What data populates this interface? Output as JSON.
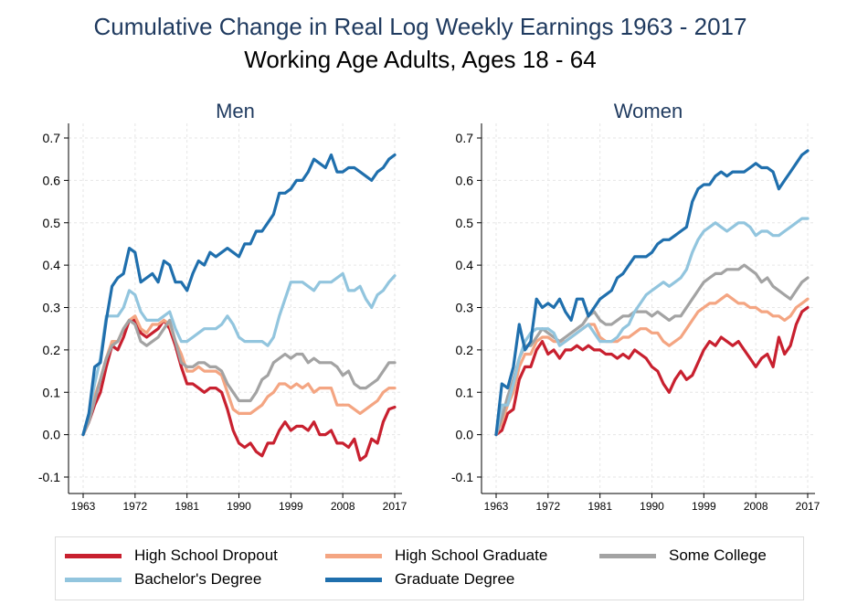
{
  "titles": {
    "main": "Cumulative Change in Real Log Weekly Earnings 1963 - 2017",
    "sub": "Working Age Adults, Ages 18 - 64"
  },
  "colors": {
    "high_school_dropout": "#c8202f",
    "high_school_graduate": "#f4a582",
    "some_college": "#a3a3a3",
    "bachelors_degree": "#92c5de",
    "graduate_degree": "#1f6fad"
  },
  "legend": [
    {
      "key": "high_school_dropout",
      "label": "High School Dropout"
    },
    {
      "key": "high_school_graduate",
      "label": "High School Graduate"
    },
    {
      "key": "some_college",
      "label": "Some College"
    },
    {
      "key": "bachelors_degree",
      "label": "Bachelor's Degree"
    },
    {
      "key": "graduate_degree",
      "label": "Graduate Degree"
    }
  ],
  "chart_data": [
    {
      "type": "line",
      "title": "Men",
      "xlim": [
        1963,
        2017
      ],
      "ylim": [
        -0.1,
        0.7
      ],
      "xticks": [
        1963,
        1972,
        1981,
        1990,
        1999,
        2008,
        2017
      ],
      "yticks": [
        "-0.1",
        "0.0",
        "0.1",
        "0.2",
        "0.3",
        "0.4",
        "0.5",
        "0.6",
        "0.7"
      ],
      "grid": true,
      "x": [
        1963,
        1964,
        1965,
        1966,
        1967,
        1968,
        1969,
        1970,
        1971,
        1972,
        1973,
        1974,
        1975,
        1976,
        1977,
        1978,
        1979,
        1980,
        1981,
        1982,
        1983,
        1984,
        1985,
        1986,
        1987,
        1988,
        1989,
        1990,
        1991,
        1992,
        1993,
        1994,
        1995,
        1996,
        1997,
        1998,
        1999,
        2000,
        2001,
        2002,
        2003,
        2004,
        2005,
        2006,
        2007,
        2008,
        2009,
        2010,
        2011,
        2012,
        2013,
        2014,
        2015,
        2016,
        2017
      ],
      "series": [
        {
          "name": "High School Dropout",
          "key": "high_school_dropout",
          "values": [
            0.0,
            0.03,
            0.07,
            0.1,
            0.16,
            0.21,
            0.2,
            0.23,
            0.27,
            0.27,
            0.24,
            0.23,
            0.24,
            0.25,
            0.27,
            0.25,
            0.21,
            0.16,
            0.12,
            0.12,
            0.11,
            0.1,
            0.11,
            0.11,
            0.1,
            0.06,
            0.01,
            -0.02,
            -0.03,
            -0.02,
            -0.04,
            -0.05,
            -0.02,
            -0.02,
            0.01,
            0.03,
            0.01,
            0.02,
            0.02,
            0.01,
            0.03,
            0.0,
            0.0,
            0.01,
            -0.02,
            -0.02,
            -0.03,
            -0.01,
            -0.06,
            -0.05,
            -0.01,
            -0.02,
            0.03,
            0.06,
            0.065
          ]
        },
        {
          "name": "High School Graduate",
          "key": "high_school_graduate",
          "values": [
            0.0,
            0.04,
            0.09,
            0.13,
            0.18,
            0.22,
            0.22,
            0.25,
            0.27,
            0.28,
            0.25,
            0.24,
            0.26,
            0.26,
            0.27,
            0.26,
            0.22,
            0.19,
            0.15,
            0.15,
            0.16,
            0.15,
            0.15,
            0.15,
            0.14,
            0.1,
            0.06,
            0.05,
            0.05,
            0.05,
            0.06,
            0.07,
            0.09,
            0.1,
            0.12,
            0.12,
            0.11,
            0.12,
            0.11,
            0.12,
            0.1,
            0.11,
            0.11,
            0.11,
            0.07,
            0.07,
            0.07,
            0.06,
            0.05,
            0.06,
            0.07,
            0.08,
            0.1,
            0.11,
            0.11
          ]
        },
        {
          "name": "Some College",
          "key": "some_college",
          "values": [
            0.0,
            0.03,
            0.08,
            0.13,
            0.18,
            0.21,
            0.22,
            0.25,
            0.27,
            0.26,
            0.22,
            0.21,
            0.22,
            0.23,
            0.25,
            0.27,
            0.22,
            0.17,
            0.16,
            0.16,
            0.17,
            0.17,
            0.16,
            0.16,
            0.15,
            0.12,
            0.1,
            0.08,
            0.08,
            0.08,
            0.1,
            0.13,
            0.14,
            0.17,
            0.18,
            0.19,
            0.18,
            0.19,
            0.19,
            0.17,
            0.18,
            0.17,
            0.17,
            0.17,
            0.16,
            0.14,
            0.15,
            0.12,
            0.11,
            0.11,
            0.12,
            0.13,
            0.15,
            0.17,
            0.17
          ]
        },
        {
          "name": "Bachelor's Degree",
          "key": "bachelors_degree",
          "values": [
            0.0,
            0.05,
            0.12,
            0.18,
            0.28,
            0.28,
            0.28,
            0.3,
            0.34,
            0.33,
            0.29,
            0.27,
            0.27,
            0.27,
            0.28,
            0.29,
            0.25,
            0.22,
            0.22,
            0.23,
            0.24,
            0.25,
            0.25,
            0.25,
            0.26,
            0.28,
            0.26,
            0.23,
            0.22,
            0.22,
            0.22,
            0.22,
            0.21,
            0.23,
            0.28,
            0.32,
            0.36,
            0.36,
            0.36,
            0.35,
            0.34,
            0.36,
            0.36,
            0.36,
            0.37,
            0.38,
            0.34,
            0.34,
            0.35,
            0.32,
            0.3,
            0.33,
            0.34,
            0.36,
            0.375
          ]
        },
        {
          "name": "Graduate Degree",
          "key": "graduate_degree",
          "values": [
            0.0,
            0.05,
            0.16,
            0.17,
            0.27,
            0.35,
            0.37,
            0.38,
            0.44,
            0.43,
            0.36,
            0.37,
            0.38,
            0.36,
            0.41,
            0.4,
            0.36,
            0.36,
            0.34,
            0.38,
            0.41,
            0.4,
            0.43,
            0.42,
            0.43,
            0.44,
            0.43,
            0.42,
            0.45,
            0.45,
            0.48,
            0.48,
            0.5,
            0.52,
            0.57,
            0.57,
            0.58,
            0.6,
            0.6,
            0.62,
            0.65,
            0.64,
            0.63,
            0.66,
            0.62,
            0.62,
            0.63,
            0.63,
            0.62,
            0.61,
            0.6,
            0.62,
            0.63,
            0.65,
            0.66
          ]
        }
      ]
    },
    {
      "type": "line",
      "title": "Women",
      "xlim": [
        1963,
        2017
      ],
      "ylim": [
        -0.1,
        0.7
      ],
      "xticks": [
        1963,
        1972,
        1981,
        1990,
        1999,
        2008,
        2017
      ],
      "yticks": [
        "-0.1",
        "0.0",
        "0.1",
        "0.2",
        "0.3",
        "0.4",
        "0.5",
        "0.6",
        "0.7"
      ],
      "grid": true,
      "x": [
        1963,
        1964,
        1965,
        1966,
        1967,
        1968,
        1969,
        1970,
        1971,
        1972,
        1973,
        1974,
        1975,
        1976,
        1977,
        1978,
        1979,
        1980,
        1981,
        1982,
        1983,
        1984,
        1985,
        1986,
        1987,
        1988,
        1989,
        1990,
        1991,
        1992,
        1993,
        1994,
        1995,
        1996,
        1997,
        1998,
        1999,
        2000,
        2001,
        2002,
        2003,
        2004,
        2005,
        2006,
        2007,
        2008,
        2009,
        2010,
        2011,
        2012,
        2013,
        2014,
        2015,
        2016,
        2017
      ],
      "series": [
        {
          "name": "High School Dropout",
          "key": "high_school_dropout",
          "values": [
            0.0,
            0.01,
            0.05,
            0.06,
            0.13,
            0.16,
            0.16,
            0.2,
            0.22,
            0.19,
            0.2,
            0.18,
            0.2,
            0.2,
            0.21,
            0.2,
            0.21,
            0.2,
            0.2,
            0.19,
            0.19,
            0.18,
            0.19,
            0.18,
            0.2,
            0.19,
            0.18,
            0.16,
            0.15,
            0.12,
            0.1,
            0.13,
            0.15,
            0.13,
            0.14,
            0.17,
            0.2,
            0.22,
            0.21,
            0.23,
            0.22,
            0.21,
            0.22,
            0.2,
            0.18,
            0.16,
            0.18,
            0.19,
            0.16,
            0.23,
            0.19,
            0.21,
            0.26,
            0.29,
            0.3
          ]
        },
        {
          "name": "High School Graduate",
          "key": "high_school_graduate",
          "values": [
            0.0,
            0.03,
            0.07,
            0.1,
            0.16,
            0.19,
            0.19,
            0.22,
            0.23,
            0.23,
            0.22,
            0.22,
            0.22,
            0.23,
            0.24,
            0.25,
            0.26,
            0.26,
            0.23,
            0.22,
            0.22,
            0.22,
            0.23,
            0.23,
            0.24,
            0.25,
            0.25,
            0.24,
            0.24,
            0.22,
            0.21,
            0.22,
            0.23,
            0.25,
            0.27,
            0.29,
            0.3,
            0.31,
            0.31,
            0.32,
            0.33,
            0.32,
            0.31,
            0.31,
            0.3,
            0.3,
            0.29,
            0.29,
            0.28,
            0.28,
            0.27,
            0.28,
            0.3,
            0.31,
            0.32
          ]
        },
        {
          "name": "Some College",
          "key": "some_college",
          "values": [
            0.0,
            0.04,
            0.09,
            0.13,
            0.18,
            0.21,
            0.21,
            0.23,
            0.25,
            0.24,
            0.23,
            0.22,
            0.23,
            0.24,
            0.25,
            0.26,
            0.28,
            0.29,
            0.27,
            0.26,
            0.26,
            0.27,
            0.28,
            0.28,
            0.29,
            0.29,
            0.29,
            0.28,
            0.29,
            0.28,
            0.27,
            0.28,
            0.28,
            0.3,
            0.32,
            0.34,
            0.36,
            0.37,
            0.38,
            0.38,
            0.39,
            0.39,
            0.39,
            0.4,
            0.39,
            0.38,
            0.36,
            0.37,
            0.35,
            0.34,
            0.33,
            0.32,
            0.34,
            0.36,
            0.37
          ]
        },
        {
          "name": "Bachelor's Degree",
          "key": "bachelors_degree",
          "values": [
            0.0,
            0.07,
            0.07,
            0.12,
            0.18,
            0.22,
            0.24,
            0.25,
            0.25,
            0.25,
            0.24,
            0.21,
            0.22,
            0.23,
            0.24,
            0.25,
            0.26,
            0.24,
            0.22,
            0.22,
            0.22,
            0.23,
            0.25,
            0.26,
            0.29,
            0.31,
            0.33,
            0.34,
            0.35,
            0.36,
            0.35,
            0.36,
            0.37,
            0.39,
            0.43,
            0.46,
            0.48,
            0.49,
            0.5,
            0.49,
            0.48,
            0.49,
            0.5,
            0.5,
            0.49,
            0.47,
            0.48,
            0.48,
            0.47,
            0.47,
            0.48,
            0.49,
            0.5,
            0.51,
            0.51
          ]
        },
        {
          "name": "Graduate Degree",
          "key": "graduate_degree",
          "values": [
            0.0,
            0.12,
            0.11,
            0.16,
            0.26,
            0.2,
            0.22,
            0.32,
            0.3,
            0.31,
            0.3,
            0.32,
            0.29,
            0.27,
            0.32,
            0.32,
            0.28,
            0.3,
            0.32,
            0.33,
            0.34,
            0.37,
            0.38,
            0.4,
            0.42,
            0.42,
            0.42,
            0.43,
            0.45,
            0.46,
            0.46,
            0.47,
            0.48,
            0.49,
            0.55,
            0.58,
            0.59,
            0.59,
            0.61,
            0.62,
            0.61,
            0.62,
            0.62,
            0.62,
            0.63,
            0.64,
            0.63,
            0.63,
            0.62,
            0.58,
            0.6,
            0.62,
            0.64,
            0.66,
            0.67
          ]
        }
      ]
    }
  ]
}
